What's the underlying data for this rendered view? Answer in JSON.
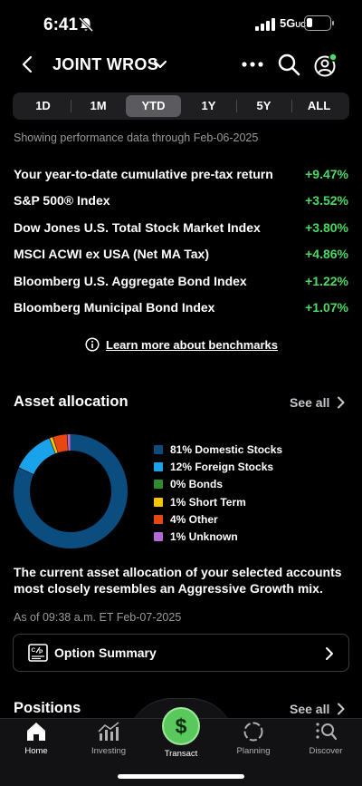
{
  "status": {
    "time": "6:41",
    "network": "5G",
    "network_suffix": "UC"
  },
  "header": {
    "account_name": "JOINT WROS"
  },
  "range_tabs": [
    {
      "label": "1D"
    },
    {
      "label": "1M"
    },
    {
      "label": "YTD"
    },
    {
      "label": "1Y"
    },
    {
      "label": "5Y"
    },
    {
      "label": "ALL"
    }
  ],
  "range_selected": "YTD",
  "performance": {
    "note": "Showing performance data through Feb-06-2025",
    "rows": [
      {
        "label": "Your year-to-date cumulative pre-tax return",
        "value": "+9.47%"
      },
      {
        "label": "S&P 500® Index",
        "value": "+3.52%"
      },
      {
        "label": "Dow Jones U.S. Total Stock Market Index",
        "value": "+3.80%"
      },
      {
        "label": "MSCI ACWI ex USA (Net MA Tax)",
        "value": "+4.86%"
      },
      {
        "label": "Bloomberg U.S. Aggregate Bond Index",
        "value": "+1.22%"
      },
      {
        "label": "Bloomberg Municipal Bond Index",
        "value": "+1.07%"
      }
    ],
    "learn_more": "Learn more about benchmarks"
  },
  "asset_allocation": {
    "title": "Asset allocation",
    "see_all": "See all",
    "items": [
      {
        "label": "81% Domestic Stocks",
        "percent": 81,
        "color": "#0b4d7e"
      },
      {
        "label": "12% Foreign Stocks",
        "percent": 12,
        "color": "#1aa3e8"
      },
      {
        "label": "0% Bonds",
        "percent": 0,
        "color": "#2e8b2e"
      },
      {
        "label": "1% Short Term",
        "percent": 1,
        "color": "#f5c400"
      },
      {
        "label": "4% Other",
        "percent": 4,
        "color": "#e8470f"
      },
      {
        "label": "1% Unknown",
        "percent": 1,
        "color": "#b36ad6"
      }
    ],
    "mix_text": "The current asset allocation of your selected accounts most closely resembles an Aggressive Growth mix.",
    "as_of": "As of 09:38 a.m. ET Feb-07-2025"
  },
  "option_summary": {
    "label": "Option Summary"
  },
  "positions": {
    "title": "Positions",
    "see_all": "See all"
  },
  "tab_bar": {
    "home": "Home",
    "investing": "Investing",
    "transact": "Transact",
    "planning": "Planning",
    "discover": "Discover"
  },
  "colors": {
    "positive": "#4cd964",
    "accent_green": "#58c95a"
  }
}
